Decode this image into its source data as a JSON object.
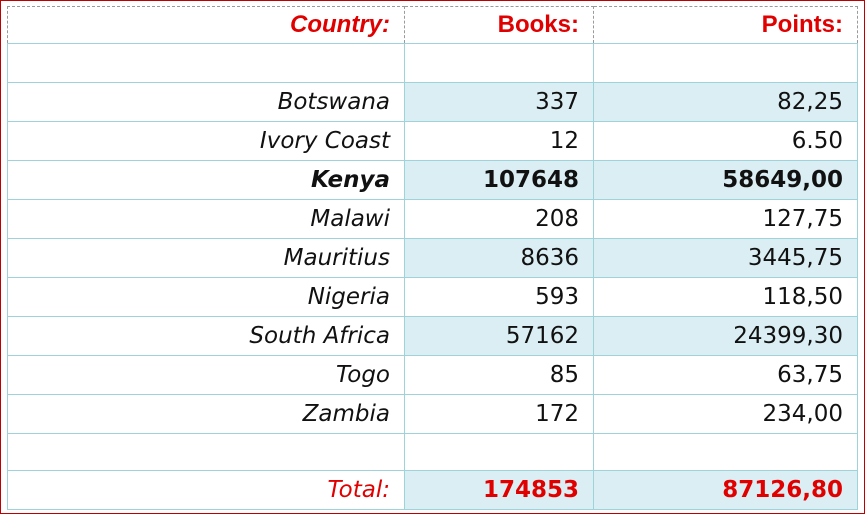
{
  "table": {
    "headers": {
      "country": "Country:",
      "books": "Books:",
      "points": "Points:"
    },
    "rows": [
      {
        "country": "Botswana",
        "books": "337",
        "points": "82,25"
      },
      {
        "country": "Ivory Coast",
        "books": "12",
        "points": "6.50"
      },
      {
        "country": "Kenya",
        "books": "107648",
        "points": "58649,00"
      },
      {
        "country": "Malawi",
        "books": "208",
        "points": "127,75"
      },
      {
        "country": "Mauritius",
        "books": "8636",
        "points": "3445,75"
      },
      {
        "country": "Nigeria",
        "books": "593",
        "points": "118,50"
      },
      {
        "country": "South Africa",
        "books": "57162",
        "points": "24399,30"
      },
      {
        "country": "Togo",
        "books": "85",
        "points": "63,75"
      },
      {
        "country": "Zambia",
        "books": "172",
        "points": "234,00"
      }
    ],
    "total": {
      "label": "Total:",
      "books": "174853",
      "points": "87126,80"
    }
  },
  "colors": {
    "header_text": "#e00000",
    "shade": "#daeef3",
    "grid_line": "#9fd3dc",
    "frame": "#c00000"
  }
}
